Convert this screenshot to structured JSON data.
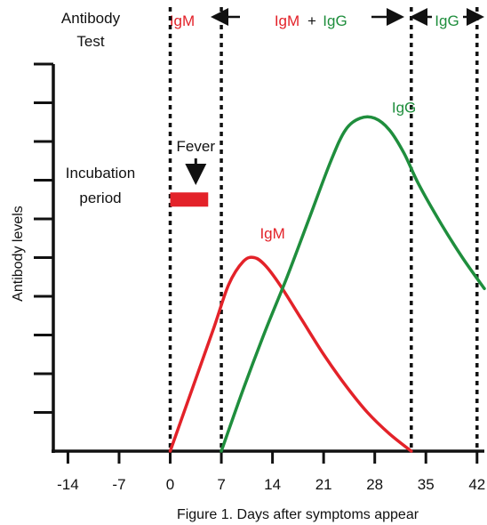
{
  "chart_data": {
    "type": "line",
    "title": "",
    "caption": "Figure 1. Days after symptoms appear",
    "ylabel": "Antibody levels",
    "xlim": [
      -16,
      43
    ],
    "ylim": [
      0,
      10
    ],
    "x_ticks": [
      -14,
      -7,
      0,
      7,
      14,
      21,
      28,
      35,
      42
    ],
    "x_tick_labels": [
      "-14",
      "-7",
      "0",
      "7",
      "14",
      "21",
      "28",
      "35",
      "42"
    ],
    "y_tick_count": 10,
    "grid": false,
    "colors": {
      "igm": "#e32229",
      "igg": "#1f8e3d",
      "axis": "#111111"
    },
    "series": [
      {
        "name": "IgM",
        "color": "#e32229",
        "x": [
          0,
          3,
          6,
          8,
          10,
          11.5,
          13,
          15,
          18,
          21,
          24,
          27,
          30,
          33
        ],
        "y": [
          0,
          1.6,
          3.2,
          4.3,
          4.9,
          5.0,
          4.8,
          4.3,
          3.4,
          2.5,
          1.7,
          1.0,
          0.45,
          0
        ]
      },
      {
        "name": "IgG",
        "color": "#1f8e3d",
        "x": [
          7,
          10,
          13,
          16,
          19,
          22,
          24,
          26,
          28,
          30,
          32,
          34,
          37,
          40,
          43
        ],
        "y": [
          0,
          1.6,
          3.1,
          4.5,
          6.0,
          7.5,
          8.3,
          8.6,
          8.6,
          8.3,
          7.7,
          6.9,
          5.9,
          5.0,
          4.2
        ]
      }
    ],
    "phase_boundaries": [
      0,
      7,
      33,
      42
    ],
    "header": {
      "antibody_test_line1": "Antibody",
      "antibody_test_line2": "Test",
      "phase1": "IgM",
      "phase2_a": "IgM",
      "phase2_plus": "+",
      "phase2_b": "IgG",
      "phase3": "IgG"
    },
    "annotations": {
      "fever": "Fever",
      "incubation_line1": "Incubation",
      "incubation_line2": "period",
      "incubation_bar_x": [
        0,
        5.2
      ],
      "incubation_bar_y": 6.5,
      "fever_x": 3.5,
      "igm_label": "IgM",
      "igm_label_x": 14,
      "igm_label_y": 5.5,
      "igg_label": "IgG",
      "igg_label_x": 32,
      "igg_label_y": 8.75
    }
  }
}
